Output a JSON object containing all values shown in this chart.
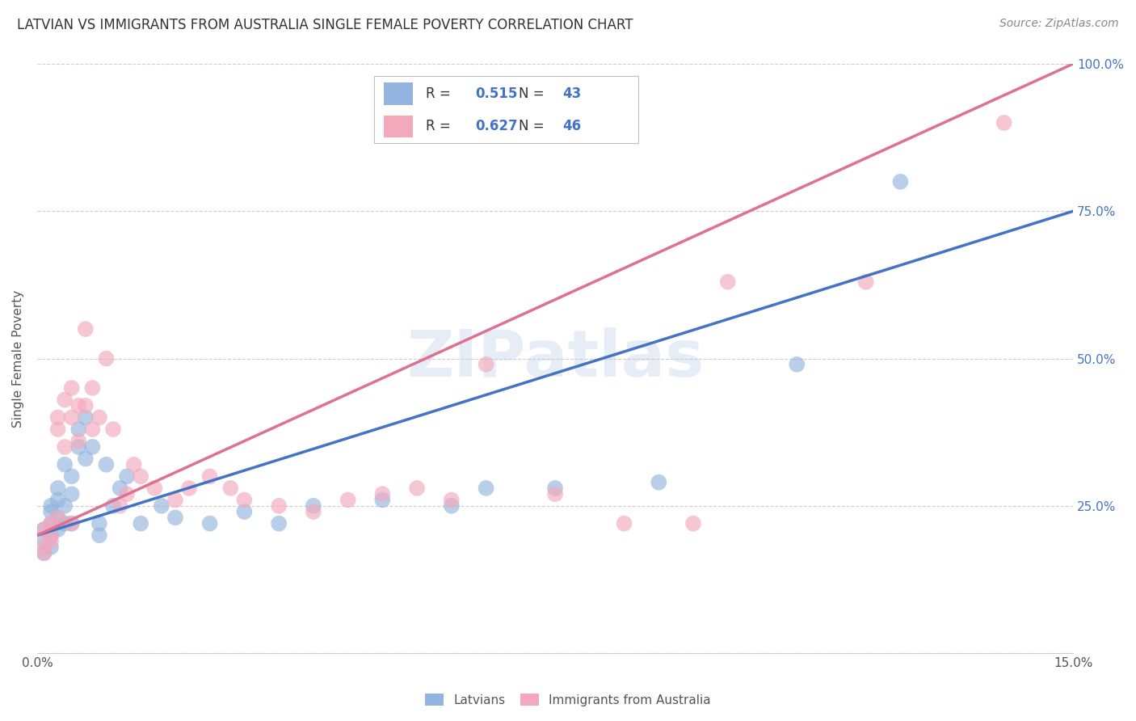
{
  "title": "LATVIAN VS IMMIGRANTS FROM AUSTRALIA SINGLE FEMALE POVERTY CORRELATION CHART",
  "source": "Source: ZipAtlas.com",
  "ylabel": "Single Female Poverty",
  "xlim": [
    0,
    0.15
  ],
  "ylim": [
    0,
    1.0
  ],
  "latvian_color": "#92b4de",
  "australia_color": "#f4a8bc",
  "latvian_line_color": "#4472c4",
  "australia_line_color": "#e07090",
  "latvian_R": 0.515,
  "latvian_N": 43,
  "australia_R": 0.627,
  "australia_N": 46,
  "watermark": "ZIPatlas",
  "legend_label_latvian": "Latvians",
  "legend_label_australia": "Immigrants from Australia",
  "latvian_x": [
    0.001,
    0.001,
    0.001,
    0.002,
    0.002,
    0.002,
    0.002,
    0.002,
    0.003,
    0.003,
    0.003,
    0.003,
    0.004,
    0.004,
    0.004,
    0.005,
    0.005,
    0.005,
    0.006,
    0.006,
    0.007,
    0.007,
    0.008,
    0.009,
    0.009,
    0.01,
    0.011,
    0.012,
    0.013,
    0.015,
    0.018,
    0.02,
    0.025,
    0.03,
    0.035,
    0.04,
    0.05,
    0.06,
    0.065,
    0.075,
    0.09,
    0.11,
    0.125
  ],
  "latvian_y": [
    0.19,
    0.21,
    0.17,
    0.2,
    0.22,
    0.18,
    0.24,
    0.25,
    0.21,
    0.23,
    0.26,
    0.28,
    0.22,
    0.25,
    0.32,
    0.27,
    0.3,
    0.22,
    0.35,
    0.38,
    0.33,
    0.4,
    0.35,
    0.2,
    0.22,
    0.32,
    0.25,
    0.28,
    0.3,
    0.22,
    0.25,
    0.23,
    0.22,
    0.24,
    0.22,
    0.25,
    0.26,
    0.25,
    0.28,
    0.28,
    0.29,
    0.49,
    0.8
  ],
  "australia_x": [
    0.001,
    0.001,
    0.001,
    0.002,
    0.002,
    0.002,
    0.003,
    0.003,
    0.003,
    0.004,
    0.004,
    0.005,
    0.005,
    0.005,
    0.006,
    0.006,
    0.007,
    0.007,
    0.008,
    0.008,
    0.009,
    0.01,
    0.011,
    0.012,
    0.013,
    0.014,
    0.015,
    0.017,
    0.02,
    0.022,
    0.025,
    0.028,
    0.03,
    0.035,
    0.04,
    0.045,
    0.05,
    0.055,
    0.06,
    0.065,
    0.075,
    0.085,
    0.095,
    0.1,
    0.12,
    0.14
  ],
  "australia_y": [
    0.18,
    0.21,
    0.17,
    0.2,
    0.19,
    0.22,
    0.23,
    0.38,
    0.4,
    0.35,
    0.43,
    0.4,
    0.45,
    0.22,
    0.42,
    0.36,
    0.55,
    0.42,
    0.38,
    0.45,
    0.4,
    0.5,
    0.38,
    0.25,
    0.27,
    0.32,
    0.3,
    0.28,
    0.26,
    0.28,
    0.3,
    0.28,
    0.26,
    0.25,
    0.24,
    0.26,
    0.27,
    0.28,
    0.26,
    0.49,
    0.27,
    0.22,
    0.22,
    0.63,
    0.63,
    0.9
  ],
  "lat_line_x0": 0.0,
  "lat_line_y0": 0.2,
  "lat_line_x1": 0.15,
  "lat_line_y1": 0.75,
  "aus_line_x0": 0.0,
  "aus_line_y0": 0.2,
  "aus_line_x1": 0.15,
  "aus_line_y1": 1.0
}
